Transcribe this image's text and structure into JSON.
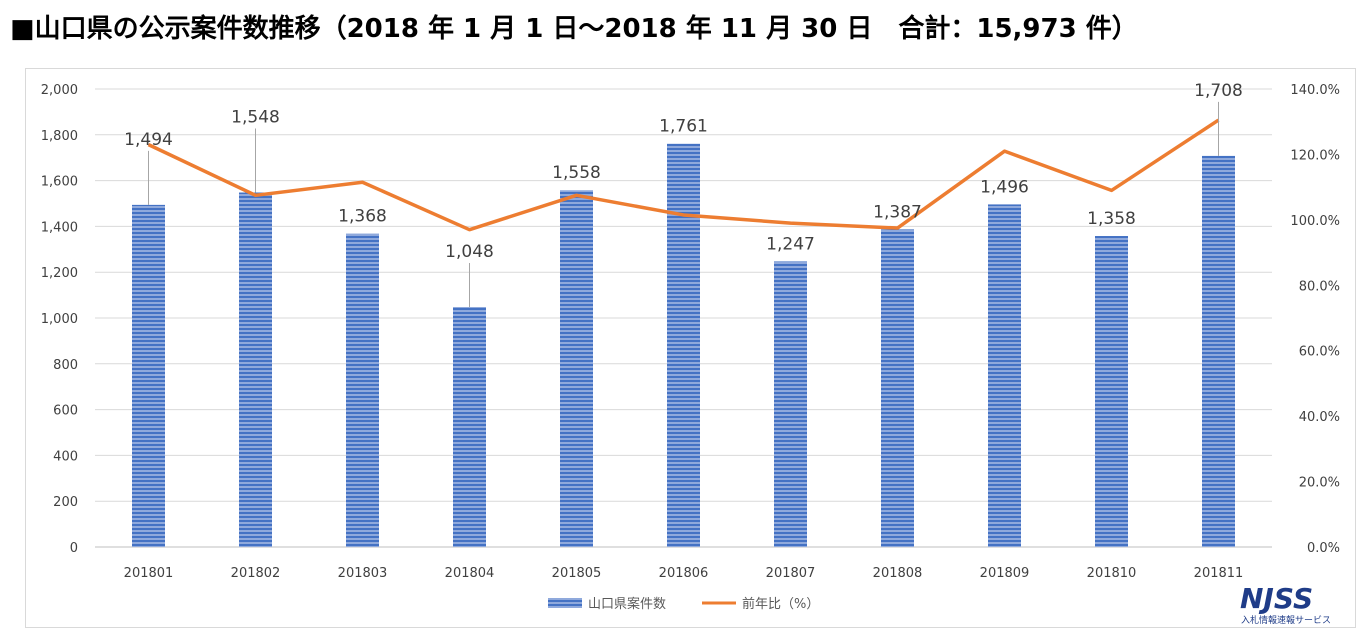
{
  "title": "■山口県の公示案件数推移（2018 年 1 月 1 日～2018 年 11 月 30 日　合計：15,973 件）",
  "chart_data": {
    "type": "bar",
    "categories": [
      "201801",
      "201802",
      "201803",
      "201804",
      "201805",
      "201806",
      "201807",
      "201808",
      "201809",
      "201810",
      "201811"
    ],
    "series": [
      {
        "name": "山口県案件数",
        "type": "bar",
        "axis": "left",
        "values": [
          1494,
          1548,
          1368,
          1048,
          1558,
          1761,
          1247,
          1387,
          1496,
          1358,
          1708
        ],
        "labels": [
          "1,494",
          "1,548",
          "1,368",
          "1,048",
          "1,558",
          "1,761",
          "1,247",
          "1,387",
          "1,496",
          "1,358",
          "1,708"
        ]
      },
      {
        "name": "前年比（%）",
        "type": "line",
        "axis": "right",
        "values": [
          123.0,
          107.5,
          111.5,
          97.0,
          107.5,
          101.5,
          99.0,
          97.5,
          121.0,
          109.0,
          130.5
        ]
      }
    ],
    "left_axis": {
      "ylim": [
        0,
        2000
      ],
      "ticks": [
        "0",
        "200",
        "400",
        "600",
        "800",
        "1,000",
        "1,200",
        "1,400",
        "1,600",
        "1,800",
        "2,000"
      ]
    },
    "right_axis": {
      "ylim": [
        0,
        140
      ],
      "ticks": [
        "0.0%",
        "20.0%",
        "40.0%",
        "60.0%",
        "80.0%",
        "100.0%",
        "120.0%",
        "140.0%"
      ]
    },
    "grid": true,
    "legend_position": "bottom",
    "colors": {
      "bar": "#4472c4",
      "line": "#ed7d31",
      "grid": "#d9d9d9",
      "text": "#404040"
    }
  },
  "logo": {
    "main": "NJSS",
    "sub": "入札情報速報サービス"
  }
}
